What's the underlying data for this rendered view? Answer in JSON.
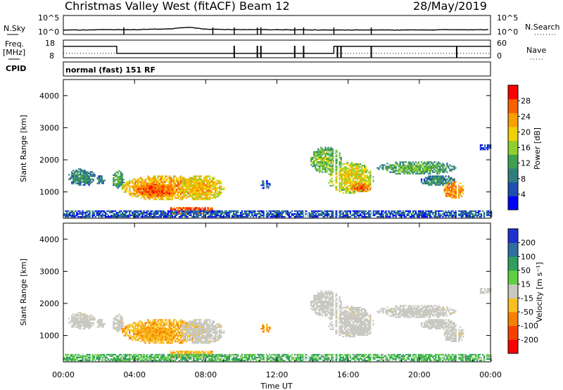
{
  "header": {
    "station": "Christmas Valley West (fitACF)",
    "beam": "Beam 12",
    "date": "28/May/2019",
    "cpid_label": "CPID",
    "cpid_value": "normal (fast) 151 RF"
  },
  "top_panels": {
    "noise": {
      "left_label": "N.Sky",
      "left_ticks": [
        "10^5",
        "10^0"
      ],
      "right_label": "N.Search",
      "right_ticks": [
        "10^5",
        "10^0"
      ]
    },
    "freq": {
      "left_label_1": "Freq.",
      "left_label_2": "[MHz]",
      "left_ticks": [
        "18",
        "8"
      ],
      "right_label": "Nave",
      "right_ticks": [
        "60",
        "0"
      ]
    }
  },
  "x_axis": {
    "label": "Time UT",
    "ticks": [
      "00:00",
      "04:00",
      "08:00",
      "12:00",
      "16:00",
      "20:00",
      "00:00"
    ]
  },
  "power_panel": {
    "ylabel": "Slant Range [km]",
    "yticks": [
      "4000",
      "3000",
      "2000",
      "1000"
    ],
    "colorbar_label": "Power [dB]",
    "colorbar_ticks": [
      "28",
      "24",
      "20",
      "16",
      "12",
      "8",
      "4"
    ],
    "colors": [
      "#0000ff",
      "#1f4fb0",
      "#2f7f7f",
      "#3fa04f",
      "#8fcf2f",
      "#f0d000",
      "#f8a000",
      "#f86000",
      "#ff0000"
    ]
  },
  "velocity_panel": {
    "ylabel": "Slant Range [km]",
    "yticks": [
      "4000",
      "3000",
      "2000",
      "1000"
    ],
    "colorbar_label": "Velocity [m s⁻¹]",
    "colorbar_ticks": [
      "200",
      "100",
      "50",
      "15",
      "-15",
      "-50",
      "-100",
      "-200"
    ],
    "colors": [
      "#2030d0",
      "#2f6fa0",
      "#2f9f5f",
      "#5fd040",
      "#c8c8c0",
      "#f8c020",
      "#f88000",
      "#f84000",
      "#ff0000"
    ],
    "ground_scatter_color": "#c8c8c0"
  },
  "chart_data": {
    "type": "heatmap",
    "x_range_hours": [
      0,
      24
    ],
    "y_range_km": [
      180,
      4500
    ],
    "power_range_db": [
      0,
      32
    ],
    "velocity_range": [
      -250,
      250
    ],
    "echo_regions": [
      {
        "t": [
          0.2,
          1.8
        ],
        "r": [
          1150,
          1700
        ],
        "power_db": 11,
        "velocity": -5,
        "ground_scatter": true
      },
      {
        "t": [
          1.8,
          2.3
        ],
        "r": [
          1200,
          1500
        ],
        "power_db": 9,
        "velocity": -5,
        "ground_scatter": true
      },
      {
        "t": [
          2.7,
          3.4
        ],
        "r": [
          1050,
          1650
        ],
        "power_db": 13,
        "velocity": -5,
        "ground_scatter": true
      },
      {
        "t": [
          3.2,
          8.0
        ],
        "r": [
          700,
          1500
        ],
        "power_db": 24,
        "velocity": -40,
        "ground_scatter": false
      },
      {
        "t": [
          4.0,
          6.2
        ],
        "r": [
          800,
          1250
        ],
        "power_db": 28,
        "velocity": -45,
        "ground_scatter": false
      },
      {
        "t": [
          6.5,
          9.0
        ],
        "r": [
          700,
          1500
        ],
        "power_db": 22,
        "velocity": -5,
        "ground_scatter": true
      },
      {
        "t": [
          6.0,
          8.4
        ],
        "r": [
          300,
          520
        ],
        "power_db": 28,
        "velocity": -40,
        "ground_scatter": false
      },
      {
        "t": [
          11.0,
          11.6
        ],
        "r": [
          1050,
          1350
        ],
        "power_db": 7,
        "velocity": -60,
        "ground_scatter": false
      },
      {
        "t": [
          13.8,
          15.6
        ],
        "r": [
          1550,
          2400
        ],
        "power_db": 16,
        "velocity": -5,
        "ground_scatter": true
      },
      {
        "t": [
          14.8,
          17.4
        ],
        "r": [
          900,
          1900
        ],
        "power_db": 20,
        "velocity": -5,
        "ground_scatter": true
      },
      {
        "t": [
          16.0,
          17.3
        ],
        "r": [
          950,
          1250
        ],
        "power_db": 27,
        "velocity": -5,
        "ground_scatter": true
      },
      {
        "t": [
          17.6,
          22.0
        ],
        "r": [
          1500,
          1950
        ],
        "power_db": 14,
        "velocity": -5,
        "ground_scatter": true
      },
      {
        "t": [
          20.0,
          22.0
        ],
        "r": [
          1150,
          1500
        ],
        "power_db": 11,
        "velocity": -5,
        "ground_scatter": true
      },
      {
        "t": [
          21.3,
          22.5
        ],
        "r": [
          750,
          1300
        ],
        "power_db": 26,
        "velocity": -5,
        "ground_scatter": true
      },
      {
        "t": [
          23.4,
          24.0
        ],
        "r": [
          2300,
          2450
        ],
        "power_db": 6,
        "velocity": -5,
        "ground_scatter": true
      },
      {
        "t": [
          0.0,
          24.0
        ],
        "r": [
          200,
          400
        ],
        "power_db": 7,
        "velocity": 30,
        "ground_scatter": false
      }
    ],
    "noise_sky_level": [
      0.6,
      0.6,
      0.7,
      0.7,
      0.7,
      0.9,
      0.95,
      1.6,
      0.9,
      0.8,
      0.7,
      0.75,
      0.7,
      0.65,
      0.65,
      0.6,
      0.6,
      0.6,
      0.6,
      0.6,
      0.6,
      0.65,
      0.7,
      0.7,
      0.7
    ],
    "freq_mhz_steps": [
      {
        "t": [
          0.0,
          3.0
        ],
        "mhz": 14.5
      },
      {
        "t": [
          3.0,
          15.2
        ],
        "mhz": 10.5
      },
      {
        "t": [
          15.2,
          17.3
        ],
        "mhz": 14.5
      },
      {
        "t": [
          17.3,
          24.0
        ],
        "mhz": 14.5
      }
    ],
    "nave_level": 15
  }
}
